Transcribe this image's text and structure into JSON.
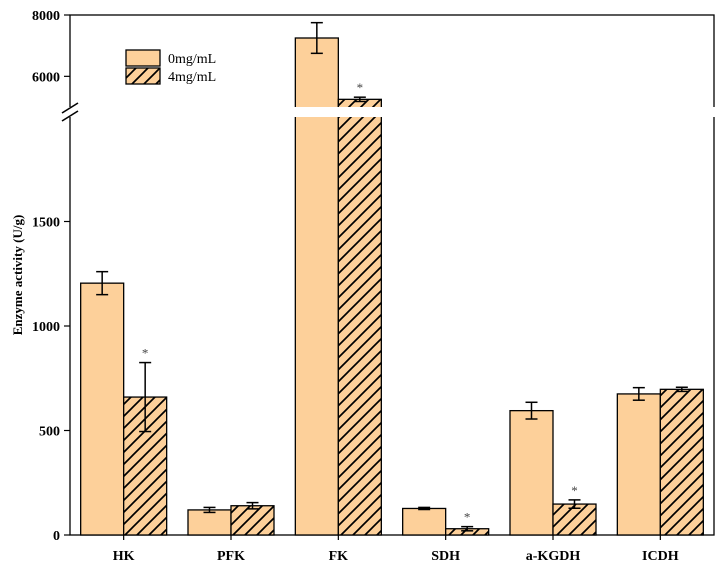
{
  "chart_data": {
    "type": "bar",
    "title": "",
    "xlabel": "",
    "ylabel": "Enzyme activity (U/g)",
    "categories": [
      "HK",
      "PFK",
      "FK",
      "SDH",
      "a-KGDH",
      "ICDH"
    ],
    "series": [
      {
        "name": "0mg/mL",
        "pattern": "solid",
        "values": [
          1205,
          120,
          7250,
          127,
          595,
          675
        ],
        "errors": [
          55,
          12,
          500,
          5,
          40,
          30
        ],
        "significant": [
          false,
          false,
          false,
          false,
          false,
          false
        ]
      },
      {
        "name": "4mg/mL",
        "pattern": "hatched",
        "values": [
          660,
          140,
          5250,
          30,
          148,
          697
        ],
        "errors": [
          165,
          15,
          70,
          10,
          20,
          10
        ],
        "significant": [
          true,
          false,
          true,
          true,
          true,
          false
        ]
      }
    ],
    "significance_marker": "*",
    "lower_axis": {
      "ylim": [
        0,
        2000
      ],
      "ticks": [
        0,
        500,
        1000,
        1500
      ]
    },
    "upper_axis": {
      "ylim": [
        5000,
        8000
      ],
      "ticks": [
        6000,
        8000
      ]
    },
    "axis_break": true,
    "legend_position": "top-left",
    "colors": {
      "bar_fill": "#fdd09a",
      "outline": "#000000"
    }
  }
}
